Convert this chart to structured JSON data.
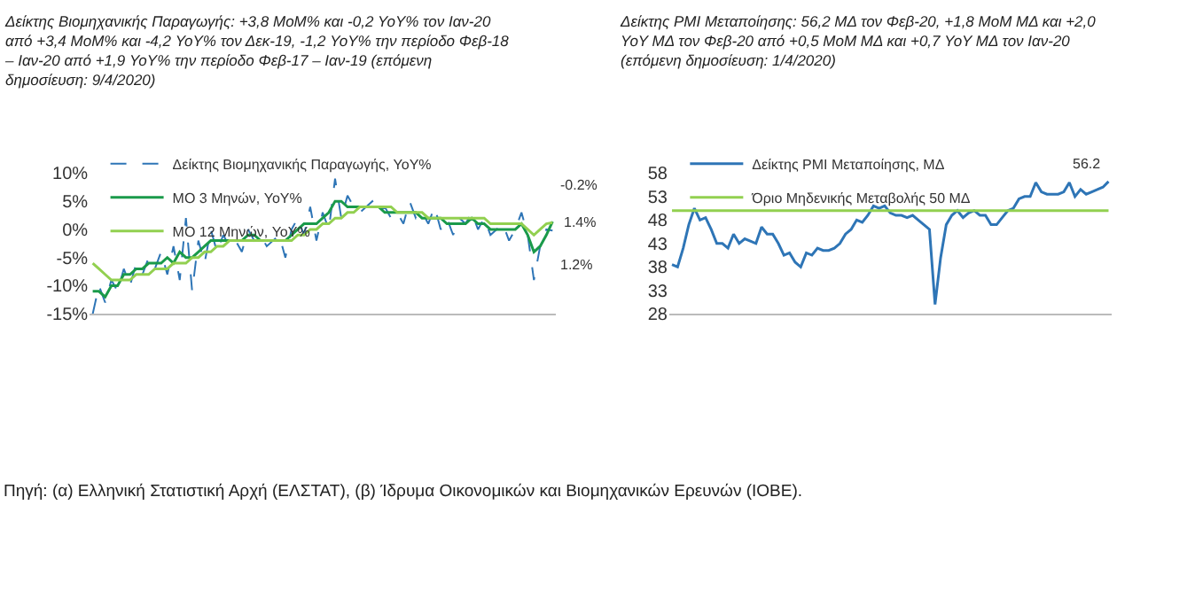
{
  "chart_data": [
    {
      "type": "line",
      "title": "Δείκτης Βιομηχανικής Παραγωγής: +3,8 MoM% και -0,2 YoY% τον Ιαν-20 από +3,4 MoM% και -4,2 YoY% τον Δεκ-19, -1,2 YoY% την περίοδο Φεβ-18 – Ιαν-20 από +1,9 YoY% την περίοδο Φεβ-17 – Ιαν-19 (επόμενη δημοσίευση: 9/4/2020)",
      "categories": [
        null,
        null,
        null,
        null,
        null,
        null,
        null,
        null,
        null,
        null,
        null,
        null,
        null,
        null,
        null,
        null,
        null,
        null,
        null,
        null,
        null,
        null,
        null,
        null,
        null,
        null,
        null,
        null,
        null,
        null,
        null,
        null,
        null,
        null,
        null,
        null,
        null,
        null,
        null,
        null,
        null,
        null,
        null,
        null,
        null,
        null,
        null,
        null,
        null,
        null,
        null,
        null,
        null,
        null,
        null,
        null,
        null,
        null,
        null,
        null,
        null,
        null,
        null,
        null,
        null,
        null,
        null,
        null,
        null,
        null,
        null,
        null,
        null,
        null,
        null
      ],
      "ylim": [
        -15,
        10
      ],
      "yticks": [
        {
          "value": -15,
          "label": "-15%"
        },
        {
          "value": -10,
          "label": "-10%"
        },
        {
          "value": -5,
          "label": "-5%"
        },
        {
          "value": 0,
          "label": "0%"
        },
        {
          "value": 5,
          "label": "5%"
        },
        {
          "value": 10,
          "label": "10%"
        }
      ],
      "legend": "top left",
      "series": [
        {
          "name": "Δείκτης Βιομηχανικής Παραγωγής, YoY%",
          "color": "#2e75b6",
          "line_style": "dashed",
          "values": [
            -15,
            -10,
            -13,
            -9,
            -11,
            -7,
            -10,
            -6,
            -8,
            -5,
            -7,
            -4,
            -8,
            -3,
            -9,
            2,
            -11,
            -2,
            -6,
            0,
            -4,
            -1,
            -3,
            -2,
            -4,
            0,
            -2,
            -1,
            -3,
            -2,
            -1,
            -5,
            0,
            2,
            -1,
            4,
            -2,
            3,
            0,
            9,
            2,
            6,
            4,
            3,
            4,
            5,
            3,
            4,
            2,
            3,
            1,
            5,
            2,
            3,
            1,
            4,
            0,
            2,
            -1,
            2,
            1,
            3,
            0,
            2,
            -1,
            0,
            1,
            -2,
            0,
            3,
            -1,
            -9,
            -3,
            0,
            -0.2
          ],
          "value_labels": [
            null,
            null,
            null,
            null,
            null,
            null,
            null,
            null,
            null,
            null,
            null,
            null,
            null,
            null,
            null,
            null,
            null,
            null,
            null,
            null,
            null,
            null,
            null,
            null,
            null,
            null,
            null,
            null,
            null,
            null,
            null,
            null,
            null,
            null,
            null,
            null,
            null,
            null,
            null,
            null,
            null,
            null,
            null,
            null,
            null,
            null,
            null,
            null,
            null,
            null,
            null,
            null,
            null,
            null,
            null,
            null,
            null,
            null,
            null,
            null,
            null,
            null,
            null,
            null,
            null,
            null,
            null,
            null,
            null,
            null,
            null,
            null,
            null,
            null,
            "-0.2%"
          ]
        },
        {
          "name": "ΜΟ 3 Μηνών, YoY%",
          "color": "#1a9a4a",
          "line_style": "solid",
          "values": [
            -11,
            -11,
            -12,
            -10,
            -10,
            -8,
            -8,
            -7,
            -7,
            -6,
            -6,
            -6,
            -5,
            -6,
            -4,
            -5,
            -5,
            -4,
            -3,
            -2,
            -2,
            -2,
            -2,
            -2,
            -2,
            -1,
            -1,
            -2,
            -2,
            -2,
            -2,
            -2,
            -1,
            0,
            1,
            1,
            1,
            2,
            3,
            5,
            5,
            4,
            4,
            4,
            4,
            4,
            4,
            3,
            3,
            3,
            3,
            3,
            3,
            2,
            2,
            2,
            2,
            1,
            1,
            1,
            1,
            2,
            1,
            1,
            0,
            0,
            0,
            0,
            0,
            1,
            -1,
            -4,
            -3,
            -1,
            1.4
          ],
          "value_labels": [
            null,
            null,
            null,
            null,
            null,
            null,
            null,
            null,
            null,
            null,
            null,
            null,
            null,
            null,
            null,
            null,
            null,
            null,
            null,
            null,
            null,
            null,
            null,
            null,
            null,
            null,
            null,
            null,
            null,
            null,
            null,
            null,
            null,
            null,
            null,
            null,
            null,
            null,
            null,
            null,
            null,
            null,
            null,
            null,
            null,
            null,
            null,
            null,
            null,
            null,
            null,
            null,
            null,
            null,
            null,
            null,
            null,
            null,
            null,
            null,
            null,
            null,
            null,
            null,
            null,
            null,
            null,
            null,
            null,
            null,
            null,
            null,
            null,
            null,
            "1.4%"
          ]
        },
        {
          "name": "ΜΟ 12 Μηνών, YoY%",
          "color": "#92d050",
          "line_style": "solid",
          "values": [
            -6,
            -7,
            -8,
            -9,
            -9,
            -9,
            -9,
            -8,
            -8,
            -8,
            -7,
            -7,
            -7,
            -6,
            -6,
            -6,
            -5,
            -5,
            -4,
            -4,
            -3,
            -3,
            -2,
            -2,
            -2,
            -2,
            -2,
            -2,
            -2,
            -2,
            -2,
            -2,
            -2,
            -1,
            -1,
            0,
            0,
            1,
            1,
            2,
            2,
            3,
            3,
            4,
            4,
            4,
            4,
            4,
            4,
            3,
            3,
            3,
            3,
            3,
            2,
            2,
            2,
            2,
            2,
            2,
            2,
            2,
            2,
            2,
            1,
            1,
            1,
            1,
            1,
            1,
            0,
            -1,
            0,
            1,
            1.2
          ],
          "value_labels": [
            null,
            null,
            null,
            null,
            null,
            null,
            null,
            null,
            null,
            null,
            null,
            null,
            null,
            null,
            null,
            null,
            null,
            null,
            null,
            null,
            null,
            null,
            null,
            null,
            null,
            null,
            null,
            null,
            null,
            null,
            null,
            null,
            null,
            null,
            null,
            null,
            null,
            null,
            null,
            null,
            null,
            null,
            null,
            null,
            null,
            null,
            null,
            null,
            null,
            null,
            null,
            null,
            null,
            null,
            null,
            null,
            null,
            null,
            null,
            null,
            null,
            null,
            null,
            null,
            null,
            null,
            null,
            null,
            null,
            null,
            null,
            null,
            null,
            null,
            "1.2%"
          ]
        }
      ]
    },
    {
      "type": "line",
      "title": "Δείκτης PMI Μεταποίησης: 56,2 ΜΔ τον Φεβ-20, +1,8 MoM ΜΔ και +2,0 YoY ΜΔ τον Φεβ-20 από +0,5 MoM ΜΔ και +0,7 YoY ΜΔ τον Ιαν-20 (επόμενη δημοσίευση: 1/4/2020)",
      "categories": [
        null,
        null,
        null,
        null,
        null,
        null,
        null,
        null,
        null,
        null,
        null,
        null,
        null,
        null,
        null,
        null,
        null,
        null,
        null,
        null,
        null,
        null,
        null,
        null,
        null,
        null,
        null,
        null,
        null,
        null,
        null,
        null,
        null,
        null,
        null,
        null,
        null,
        null,
        null,
        null,
        null,
        null,
        null,
        null,
        null,
        null,
        null,
        null,
        null,
        null,
        null,
        null,
        null,
        null,
        null,
        null,
        null,
        null,
        null,
        null,
        null,
        null,
        null,
        null,
        null,
        null,
        null,
        null,
        null,
        null,
        null,
        null,
        null,
        null,
        null,
        null,
        null,
        null,
        null
      ],
      "ylim": [
        28,
        58
      ],
      "yticks": [
        28,
        33,
        38,
        43,
        48,
        53,
        58
      ],
      "legend": "top left",
      "ref_lines": [
        {
          "axis": "y",
          "value": 50,
          "label": "Όριο Μηδενικής Μεταβολής 50 ΜΔ",
          "color": "#92d050",
          "line_style": "solid"
        }
      ],
      "annotations": [
        "Πηγή: (α) Ελληνική Στατιστική Αρχή (ΕΛΣΤΑΤ), (β) Ίδρυμα Οικονομικών και Βιομηχανικών Ερευνών (ΙΟΒΕ)."
      ],
      "series": [
        {
          "name": "Δείκτης PMI Μεταποίησης, ΜΔ",
          "color": "#2e75b6",
          "line_style": "solid",
          "values": [
            38.5,
            38,
            42,
            47,
            50.5,
            48,
            48.5,
            46,
            43,
            43,
            42,
            45,
            43,
            44,
            43.5,
            43,
            46.5,
            45,
            45,
            43,
            40.5,
            41,
            39,
            38,
            41,
            40.5,
            42,
            41.5,
            41.5,
            42,
            43,
            45,
            46,
            48,
            47.5,
            49,
            51,
            50.5,
            51,
            49.5,
            49,
            49,
            48.5,
            49,
            48,
            47,
            46,
            30,
            40,
            47,
            49,
            50,
            48.5,
            49.5,
            50,
            49,
            49,
            47,
            47,
            48.5,
            50,
            50.5,
            52.5,
            53,
            53,
            56,
            54,
            53.5,
            53.5,
            53.5,
            54,
            56,
            53,
            54.5,
            53.5,
            54,
            54.5,
            55,
            56.2
          ],
          "value_labels": [
            null,
            null,
            null,
            null,
            null,
            null,
            null,
            null,
            null,
            null,
            null,
            null,
            null,
            null,
            null,
            null,
            null,
            null,
            null,
            null,
            null,
            null,
            null,
            null,
            null,
            null,
            null,
            null,
            null,
            null,
            null,
            null,
            null,
            null,
            null,
            null,
            null,
            null,
            null,
            null,
            null,
            null,
            null,
            null,
            null,
            null,
            null,
            null,
            null,
            null,
            null,
            null,
            null,
            null,
            null,
            null,
            null,
            null,
            null,
            null,
            null,
            null,
            null,
            null,
            null,
            null,
            null,
            null,
            null,
            null,
            null,
            null,
            null,
            null,
            null,
            null,
            null,
            null,
            "56.2"
          ]
        }
      ]
    }
  ]
}
